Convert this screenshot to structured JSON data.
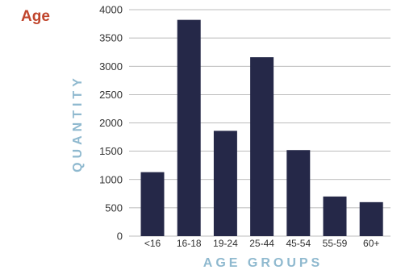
{
  "chart_data": {
    "type": "bar",
    "title": "Age",
    "xlabel": "AGE GROUPS",
    "ylabel": "QUANTITY",
    "categories": [
      "<16",
      "16-18",
      "19-24",
      "25-44",
      "45-54",
      "55-59",
      "60+"
    ],
    "values": [
      1130,
      3820,
      1860,
      3160,
      1520,
      700,
      600
    ],
    "yticks": [
      "0",
      "500",
      "1000",
      "1500",
      "2000",
      "2500",
      "3000",
      "3500",
      "4000"
    ],
    "ylim": [
      0,
      4000
    ],
    "grid": true,
    "legend": "none",
    "colors": {
      "bar": "#252848",
      "title": "#c0452c",
      "axis_label": "#8fb9cf",
      "grid": "#a6a6a6",
      "tick_text": "#333333"
    }
  }
}
